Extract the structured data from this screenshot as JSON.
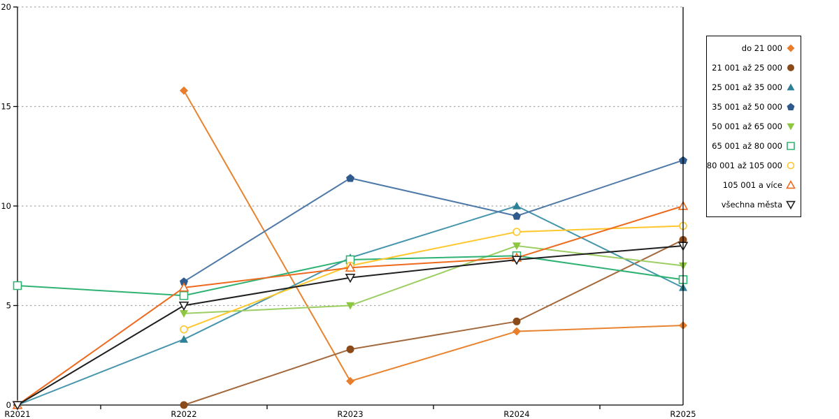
{
  "chart_data": {
    "type": "line",
    "title": "",
    "xlabel": "",
    "ylabel": "",
    "x": [
      "R2021",
      "R2022",
      "R2023",
      "R2024",
      "R2025"
    ],
    "ylim": [
      0,
      20
    ],
    "yticks": [
      0,
      5,
      10,
      15,
      20
    ],
    "grid": "horizontal-dotted",
    "grid_color": "#ABABAB",
    "axis_color": "#000000",
    "legend_position": "right-outside",
    "series": [
      {
        "name": "do 21 000",
        "marker": "diamond",
        "marker_style": "filled",
        "color": "#E87D2B",
        "line_color": "#E8832F",
        "values": [
          null,
          15.8,
          1.2,
          3.7,
          4.0
        ]
      },
      {
        "name": "21 001 až 25 000",
        "marker": "circle",
        "marker_style": "filled",
        "color": "#8B4A1A",
        "line_color": "#A3693C",
        "values": [
          null,
          0,
          2.8,
          4.2,
          8.3
        ]
      },
      {
        "name": "25 001 až 35 000",
        "marker": "triangle-up",
        "marker_style": "filled",
        "color": "#2E8096",
        "line_color": "#4695AC",
        "values": [
          0,
          3.3,
          7.4,
          10.0,
          5.9
        ]
      },
      {
        "name": "35 001 až 50 000",
        "marker": "pentagon",
        "marker_style": "filled",
        "color": "#305A8C",
        "line_color": "#4E79A8",
        "values": [
          null,
          6.2,
          11.4,
          9.5,
          12.3
        ]
      },
      {
        "name": "50 001 až 65 000",
        "marker": "triangle-down",
        "marker_style": "filled",
        "color": "#8DC63F",
        "line_color": "#9CCE63",
        "values": [
          null,
          4.6,
          5.0,
          8.0,
          7.0
        ]
      },
      {
        "name": "65 001 až 80 000",
        "marker": "square",
        "marker_style": "open",
        "color": "#2EB273",
        "line_color": "#2EB273",
        "values": [
          6.0,
          5.5,
          7.3,
          7.5,
          6.3
        ]
      },
      {
        "name": "80 001 až 105 000",
        "marker": "circle",
        "marker_style": "open",
        "color": "#FFC72C",
        "line_color": "#FFC72C",
        "values": [
          null,
          3.8,
          7.0,
          8.7,
          9.0
        ]
      },
      {
        "name": "105 001 a více",
        "marker": "triangle-up",
        "marker_style": "open",
        "color": "#ED6A1E",
        "line_color": "#ED6A1E",
        "values": [
          0,
          5.9,
          6.9,
          7.4,
          10.0
        ]
      },
      {
        "name": "všechna města",
        "marker": "triangle-down",
        "marker_style": "open",
        "color": "#1F1F1F",
        "line_color": "#1F1F1F",
        "values": [
          0,
          5.0,
          6.4,
          7.3,
          8.0
        ]
      }
    ]
  }
}
